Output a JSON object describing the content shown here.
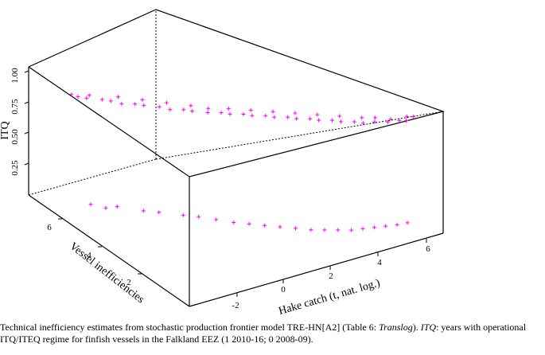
{
  "chart_data": {
    "type": "scatter",
    "title": "",
    "axes": {
      "x": {
        "label": "Hake catch (t, nat. log.)",
        "ticks": [
          "-2",
          "0",
          "2",
          "4",
          "6"
        ]
      },
      "y": {
        "label": "Vessel inefficiencies",
        "ticks": [
          "2",
          "4",
          "6"
        ]
      },
      "z": {
        "label": "ITQ",
        "ticks": [
          "0.25",
          "0.50",
          "0.75",
          "1.00"
        ]
      }
    },
    "marker": "+",
    "color": "#ff00ff",
    "series": [
      {
        "itq": 1,
        "period": "2010-16",
        "points": [
          [
            -2.8,
            7.2
          ],
          [
            -2.7,
            7.0
          ],
          [
            -2.5,
            6.8
          ],
          [
            -2.3,
            6.9
          ],
          [
            -2.1,
            6.5
          ],
          [
            -1.9,
            6.3
          ],
          [
            -1.7,
            6.0
          ],
          [
            -1.5,
            6.4
          ],
          [
            -1.3,
            5.8
          ],
          [
            -1.1,
            5.6
          ],
          [
            -0.9,
            5.9
          ],
          [
            -0.7,
            5.3
          ],
          [
            -0.5,
            5.0
          ],
          [
            -0.3,
            5.4
          ],
          [
            -0.1,
            4.8
          ],
          [
            0.1,
            4.6
          ],
          [
            0.3,
            4.9
          ],
          [
            0.5,
            4.3
          ],
          [
            0.7,
            4.5
          ],
          [
            0.9,
            4.1
          ],
          [
            1.1,
            3.9
          ],
          [
            1.3,
            4.2
          ],
          [
            1.5,
            3.7
          ],
          [
            1.7,
            3.5
          ],
          [
            1.9,
            3.8
          ],
          [
            2.1,
            3.3
          ],
          [
            2.3,
            3.1
          ],
          [
            2.5,
            3.4
          ],
          [
            2.7,
            2.9
          ],
          [
            2.9,
            2.7
          ],
          [
            3.1,
            3.0
          ],
          [
            3.3,
            2.5
          ],
          [
            3.5,
            2.3
          ],
          [
            3.7,
            2.6
          ],
          [
            3.9,
            2.1
          ],
          [
            4.1,
            1.9
          ],
          [
            4.3,
            2.2
          ],
          [
            4.5,
            1.7
          ],
          [
            4.7,
            1.5
          ],
          [
            4.9,
            1.8
          ],
          [
            5.1,
            1.4
          ],
          [
            5.3,
            1.6
          ],
          [
            5.5,
            1.2
          ],
          [
            5.7,
            1.3
          ],
          [
            5.9,
            1.1
          ],
          [
            6.1,
            1.0
          ],
          [
            6.3,
            1.2
          ],
          [
            6.5,
            1.1
          ]
        ]
      },
      {
        "itq": 0,
        "period": "2008-09",
        "points": [
          [
            -2.5,
            6.6
          ],
          [
            -2.2,
            6.2
          ],
          [
            -1.8,
            6.1
          ],
          [
            -1.2,
            5.5
          ],
          [
            -0.8,
            5.2
          ],
          [
            -0.2,
            4.7
          ],
          [
            0.2,
            4.4
          ],
          [
            0.6,
            4.0
          ],
          [
            1.0,
            3.6
          ],
          [
            1.4,
            3.3
          ],
          [
            1.8,
            3.0
          ],
          [
            2.2,
            2.7
          ],
          [
            2.6,
            2.4
          ],
          [
            3.0,
            2.1
          ],
          [
            3.4,
            1.9
          ],
          [
            3.8,
            1.7
          ],
          [
            4.2,
            1.5
          ],
          [
            4.6,
            1.4
          ],
          [
            5.0,
            1.3
          ],
          [
            5.4,
            1.2
          ],
          [
            5.8,
            1.1
          ],
          [
            6.2,
            1.05
          ]
        ]
      }
    ]
  },
  "caption": {
    "lead": "Technical inefficiency estimates from stochastic production frontier model TRE-HN[A2] (Table 6: ",
    "table_name": "Translog",
    "mid": "). ",
    "itq_term": "ITQ",
    "tail": ": years with operational ITQ/ITEQ regime for finfish vessels in the Falkland EEZ (1 2010-16; 0 2008-09)."
  }
}
